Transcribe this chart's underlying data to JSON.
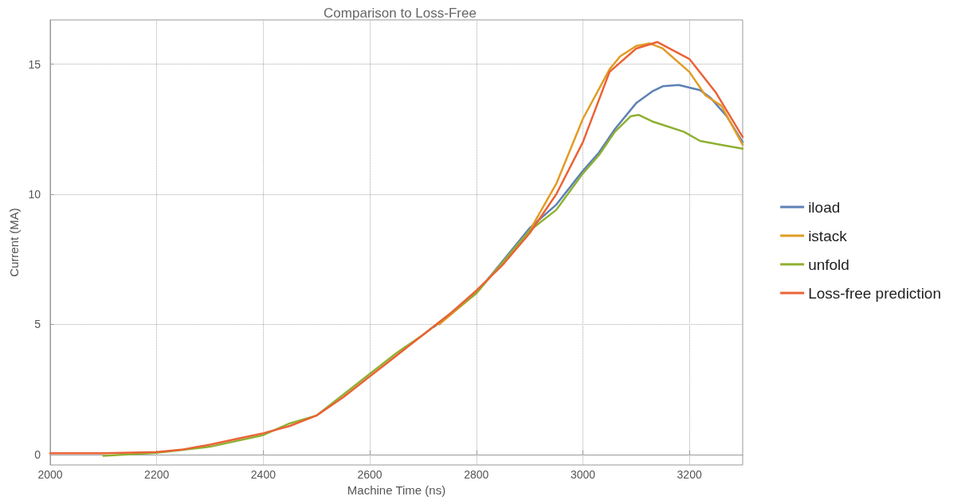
{
  "chart_data": {
    "type": "line",
    "title": "Comparison to Loss-Free",
    "xlabel": "Machine Time (ns)",
    "ylabel": "Current (MA)",
    "xlim": [
      2000,
      3300
    ],
    "xticks": [
      2000,
      2200,
      2400,
      2600,
      2800,
      3000,
      3200
    ],
    "ylim": [
      -0.4,
      16.7
    ],
    "yticks": [
      0,
      5,
      10,
      15
    ],
    "grid": true,
    "legend": "right",
    "marker": "none",
    "line_style": "solid",
    "series": [
      {
        "name": "iload",
        "color": "#5e81b5",
        "x": [
          2720,
          2800,
          2900,
          2950,
          3000,
          3030,
          3060,
          3100,
          3130,
          3150,
          3180,
          3220,
          3240,
          3270,
          3300
        ],
        "values": [
          4.9,
          6.2,
          8.7,
          9.6,
          10.9,
          11.6,
          12.5,
          13.5,
          13.95,
          14.15,
          14.2,
          14.0,
          13.7,
          13.0,
          12.0
        ]
      },
      {
        "name": "istack",
        "color": "#e19c24",
        "x": [
          2730,
          2800,
          2900,
          2950,
          3000,
          3050,
          3070,
          3100,
          3125,
          3150,
          3200,
          3230,
          3260,
          3300
        ],
        "values": [
          5.0,
          6.2,
          8.6,
          10.4,
          12.9,
          14.8,
          15.3,
          15.7,
          15.8,
          15.6,
          14.7,
          13.8,
          13.4,
          11.9
        ]
      },
      {
        "name": "unfold",
        "color": "#8fb032",
        "x": [
          2100,
          2200,
          2300,
          2400,
          2450,
          2500,
          2550,
          2600,
          2650,
          2700,
          2800,
          2900,
          2950,
          3000,
          3030,
          3060,
          3090,
          3105,
          3130,
          3160,
          3190,
          3220,
          3260,
          3300
        ],
        "values": [
          -0.05,
          0.07,
          0.3,
          0.75,
          1.2,
          1.5,
          2.3,
          3.1,
          3.9,
          4.6,
          6.2,
          8.6,
          9.4,
          10.8,
          11.5,
          12.4,
          13.0,
          13.05,
          12.8,
          12.6,
          12.4,
          12.05,
          11.9,
          11.75
        ]
      },
      {
        "name": "Loss-free prediction",
        "color": "#eb6235",
        "x": [
          2000,
          2100,
          2200,
          2250,
          2300,
          2350,
          2400,
          2450,
          2500,
          2550,
          2600,
          2650,
          2700,
          2750,
          2800,
          2850,
          2900,
          2950,
          3000,
          3050,
          3100,
          3140,
          3200,
          3250,
          3300
        ],
        "values": [
          0.05,
          0.05,
          0.1,
          0.2,
          0.38,
          0.6,
          0.82,
          1.1,
          1.5,
          2.2,
          3.0,
          3.8,
          4.6,
          5.4,
          6.3,
          7.3,
          8.5,
          10.0,
          12.0,
          14.7,
          15.6,
          15.85,
          15.2,
          13.9,
          12.2
        ]
      }
    ]
  }
}
